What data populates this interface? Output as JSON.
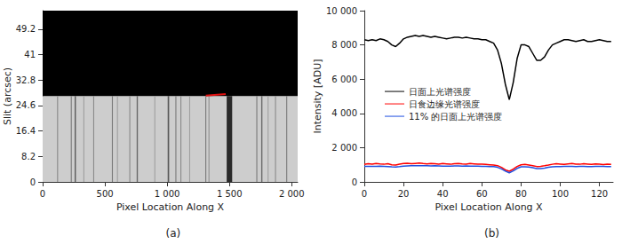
{
  "chart_data": [
    {
      "type": "image",
      "title": "(a)",
      "x_label": "Pixel Location Along X",
      "y_label": "Slit (arcsec)",
      "xlim": [
        0,
        2048
      ],
      "xticks": [
        0,
        500,
        {
          "value": 1000,
          "label": "1 000"
        },
        {
          "value": 1500,
          "label": "1 500"
        },
        {
          "value": 2000,
          "label": "2 000"
        }
      ],
      "ylim": [
        0,
        55.2
      ],
      "yticks": [
        0,
        8.2,
        16.4,
        24.6,
        32.8,
        41,
        49.2
      ],
      "regions": [
        {
          "ylim": [
            0,
            27.7
          ],
          "color": "#cdcdcd"
        },
        {
          "ylim": [
            27.7,
            55.2
          ],
          "color": "#000000"
        }
      ],
      "absorption_lines": [
        {
          "x": 120,
          "width": 8,
          "color": "#8a8a8a"
        },
        {
          "x": 230,
          "width": 8,
          "color": "#7a7a7a"
        },
        {
          "x": 262,
          "width": 10,
          "color": "#5a5a5a"
        },
        {
          "x": 330,
          "width": 6,
          "color": "#9a9a9a"
        },
        {
          "x": 410,
          "width": 8,
          "color": "#8a8a8a"
        },
        {
          "x": 560,
          "width": 8,
          "color": "#7a7a7a"
        },
        {
          "x": 600,
          "width": 6,
          "color": "#9a9a9a"
        },
        {
          "x": 700,
          "width": 8,
          "color": "#8a8a8a"
        },
        {
          "x": 760,
          "width": 10,
          "color": "#6a6a6a"
        },
        {
          "x": 900,
          "width": 6,
          "color": "#9a9a9a"
        },
        {
          "x": 1010,
          "width": 12,
          "color": "#5a5a5a"
        },
        {
          "x": 1070,
          "width": 8,
          "color": "#7a7a7a"
        },
        {
          "x": 1110,
          "width": 8,
          "color": "#8a8a8a"
        },
        {
          "x": 1180,
          "width": 6,
          "color": "#9a9a9a"
        },
        {
          "x": 1310,
          "width": 8,
          "color": "#7a7a7a"
        },
        {
          "x": 1335,
          "width": 6,
          "color": "#8a8a8a"
        },
        {
          "x": 1500,
          "width": 44,
          "color": "#2a2a2a"
        },
        {
          "x": 1720,
          "width": 8,
          "color": "#7a7a7a"
        },
        {
          "x": 1760,
          "width": 10,
          "color": "#6a6a6a"
        },
        {
          "x": 1810,
          "width": 6,
          "color": "#9a9a9a"
        },
        {
          "x": 1870,
          "width": 8,
          "color": "#8a8a8a"
        },
        {
          "x": 1960,
          "width": 8,
          "color": "#7a7a7a"
        }
      ],
      "series": [
        {
          "type": "line",
          "color": "#e01010",
          "x": [
            1310,
            1470
          ],
          "values": [
            27.8,
            28.3
          ]
        }
      ]
    },
    {
      "type": "line",
      "title": "(b)",
      "x_label": "Pixel Location Along X",
      "y_label": "Intensity [ADU]",
      "xlim": [
        0,
        127
      ],
      "xticks": [
        0,
        20,
        40,
        60,
        80,
        100,
        120
      ],
      "ylim": [
        0,
        10000
      ],
      "yticks": [
        0,
        {
          "value": 2000,
          "label": "2 000"
        },
        {
          "value": 4000,
          "label": "4 000"
        },
        {
          "value": 6000,
          "label": "6 000"
        },
        {
          "value": 8000,
          "label": "8 000"
        },
        {
          "value": 10000,
          "label": "10 000"
        }
      ],
      "legend": "center",
      "x": [
        0,
        2,
        4,
        6,
        8,
        10,
        12,
        14,
        16,
        18,
        20,
        22,
        24,
        26,
        28,
        30,
        32,
        34,
        36,
        38,
        40,
        42,
        44,
        46,
        48,
        50,
        52,
        54,
        56,
        58,
        60,
        62,
        64,
        66,
        68,
        70,
        72,
        74,
        76,
        78,
        80,
        82,
        84,
        86,
        88,
        90,
        92,
        94,
        96,
        98,
        100,
        102,
        104,
        106,
        108,
        110,
        112,
        114,
        116,
        118,
        120,
        122,
        124,
        126
      ],
      "series": [
        {
          "name": "日面上光谱强度",
          "color": "#000000",
          "values": [
            8300,
            8250,
            8300,
            8250,
            8350,
            8300,
            8200,
            8000,
            7900,
            8100,
            8350,
            8450,
            8500,
            8550,
            8500,
            8550,
            8500,
            8450,
            8500,
            8450,
            8400,
            8350,
            8400,
            8450,
            8450,
            8400,
            8450,
            8400,
            8350,
            8350,
            8300,
            8300,
            8200,
            8100,
            7700,
            6900,
            5700,
            4800,
            5800,
            7200,
            8000,
            8000,
            7900,
            7500,
            7100,
            7100,
            7300,
            7700,
            8000,
            8100,
            8200,
            8300,
            8300,
            8250,
            8200,
            8250,
            8300,
            8200,
            8200,
            8250,
            8300,
            8250,
            8200,
            8200
          ]
        },
        {
          "name": "日食边缘光谱强度",
          "color": "#ff0000",
          "values": [
            1020,
            1060,
            1040,
            1080,
            1050,
            1030,
            1060,
            1000,
            980,
            1040,
            1070,
            1090,
            1060,
            1080,
            1100,
            1070,
            1050,
            1080,
            1060,
            1040,
            1070,
            1050,
            1030,
            1060,
            1080,
            1050,
            1040,
            1070,
            1050,
            1030,
            1040,
            1020,
            1000,
            980,
            950,
            850,
            700,
            620,
            740,
            900,
            1000,
            1020,
            990,
            950,
            900,
            910,
            940,
            980,
            1030,
            1060,
            1040,
            1020,
            1050,
            1070,
            1040,
            1030,
            1060,
            1040,
            1020,
            1050,
            1030,
            1010,
            1040,
            1020
          ]
        },
        {
          "name": "11% 的日面上光谱强度",
          "color": "#1f4fe0",
          "values": [
            910,
            910,
            910,
            910,
            920,
            910,
            900,
            880,
            870,
            890,
            920,
            930,
            940,
            940,
            940,
            940,
            940,
            930,
            940,
            930,
            920,
            920,
            920,
            930,
            930,
            920,
            930,
            920,
            920,
            920,
            910,
            910,
            900,
            890,
            850,
            760,
            630,
            530,
            640,
            790,
            880,
            880,
            870,
            830,
            780,
            780,
            800,
            850,
            880,
            890,
            900,
            910,
            910,
            910,
            900,
            910,
            910,
            900,
            900,
            910,
            910,
            910,
            900,
            900
          ]
        }
      ]
    }
  ]
}
